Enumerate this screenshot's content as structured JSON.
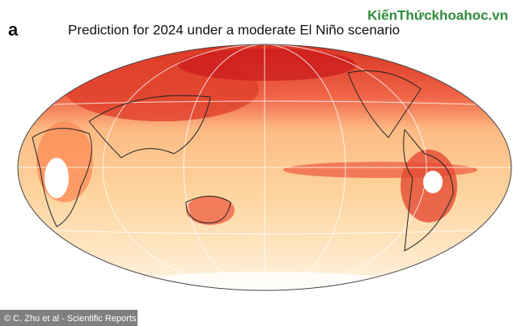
{
  "panel_label": "a",
  "title": "Prediction for 2024 under a moderate El Niño scenario",
  "watermark": "KiếnThứckhoahoc.vn",
  "credit": "© C. Zhu et al - Scientific Reports"
}
